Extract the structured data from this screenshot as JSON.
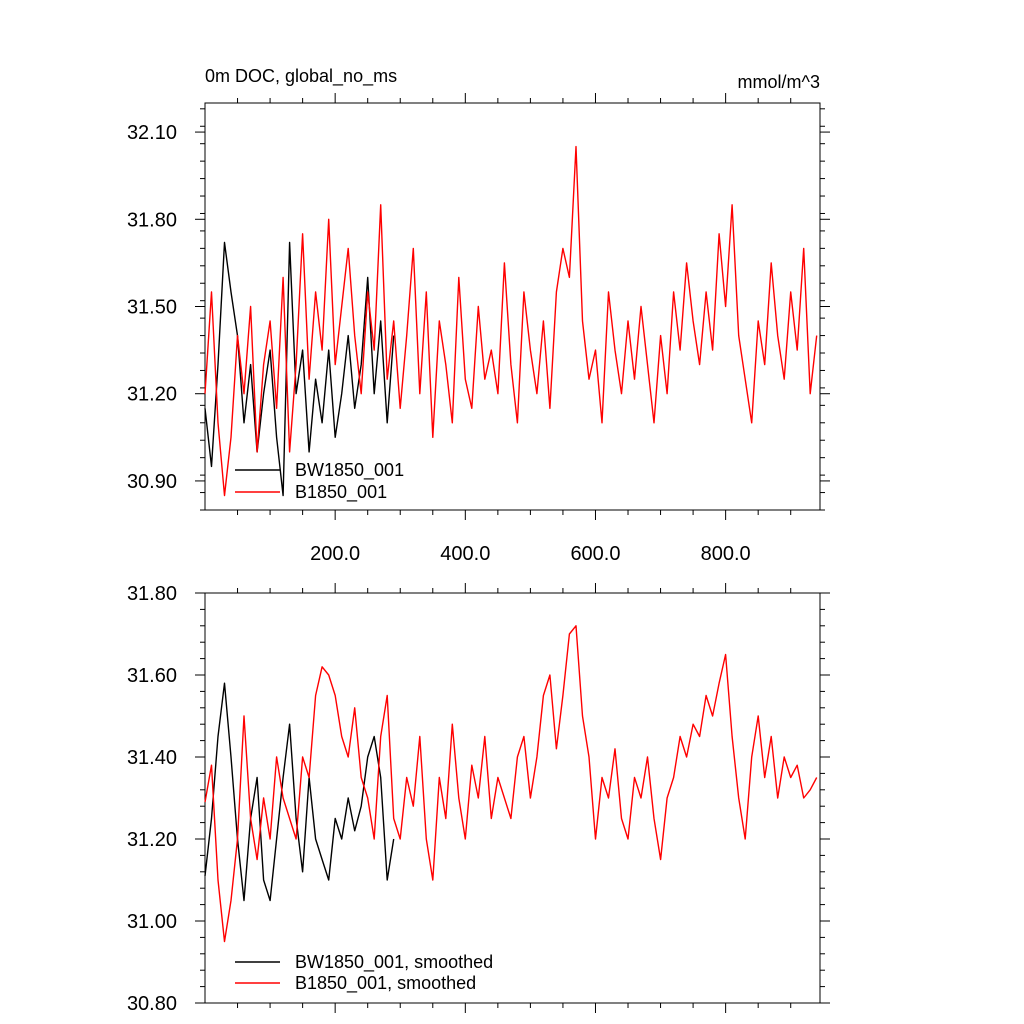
{
  "header": {
    "title": "0m DOC, global_no_ms",
    "units": "mmol/m^3"
  },
  "colors": {
    "BW1850_001": "#000000",
    "B1850_001": "#ff0000"
  },
  "chart_data": [
    {
      "type": "line",
      "panel": "top",
      "xlim": [
        0,
        945
      ],
      "ylim": [
        30.8,
        32.2
      ],
      "x_ticks": [
        200,
        400,
        600,
        800
      ],
      "x_tick_labels": [
        "200.0",
        "400.0",
        "600.0",
        "800.0"
      ],
      "y_ticks": [
        30.9,
        31.2,
        31.5,
        31.8,
        32.1
      ],
      "y_tick_labels": [
        "30.90",
        "31.20",
        "31.50",
        "31.80",
        "32.10"
      ],
      "legend_position": "bottom-left",
      "series": [
        {
          "name": "BW1850_001",
          "color": "#000000",
          "x": [
            0,
            10,
            20,
            30,
            40,
            50,
            60,
            70,
            80,
            90,
            100,
            110,
            120,
            130,
            140,
            150,
            160,
            170,
            180,
            190,
            200,
            210,
            220,
            230,
            240,
            250,
            260,
            270,
            280,
            290
          ],
          "y": [
            31.15,
            30.95,
            31.3,
            31.72,
            31.55,
            31.4,
            31.1,
            31.3,
            31.0,
            31.2,
            31.35,
            31.05,
            30.85,
            31.72,
            31.2,
            31.35,
            31.0,
            31.25,
            31.1,
            31.35,
            31.05,
            31.2,
            31.4,
            31.15,
            31.3,
            31.6,
            31.2,
            31.45,
            31.1,
            31.4
          ]
        },
        {
          "name": "B1850_001",
          "color": "#ff0000",
          "x": [
            0,
            10,
            20,
            30,
            40,
            50,
            60,
            70,
            80,
            90,
            100,
            110,
            120,
            130,
            140,
            150,
            160,
            170,
            180,
            190,
            200,
            210,
            220,
            230,
            240,
            250,
            260,
            270,
            280,
            290,
            300,
            310,
            320,
            330,
            340,
            350,
            360,
            370,
            380,
            390,
            400,
            410,
            420,
            430,
            440,
            450,
            460,
            470,
            480,
            490,
            500,
            510,
            520,
            530,
            540,
            550,
            560,
            570,
            580,
            590,
            600,
            610,
            620,
            630,
            640,
            650,
            660,
            670,
            680,
            690,
            700,
            710,
            720,
            730,
            740,
            750,
            760,
            770,
            780,
            790,
            800,
            810,
            820,
            830,
            840,
            850,
            860,
            870,
            880,
            890,
            900,
            910,
            920,
            930,
            940
          ],
          "y": [
            31.2,
            31.55,
            31.1,
            30.85,
            31.05,
            31.4,
            31.2,
            31.5,
            31.0,
            31.3,
            31.45,
            31.15,
            31.6,
            31.0,
            31.3,
            31.75,
            31.25,
            31.55,
            31.35,
            31.8,
            31.3,
            31.5,
            31.7,
            31.4,
            31.2,
            31.55,
            31.35,
            31.85,
            31.25,
            31.45,
            31.15,
            31.4,
            31.7,
            31.2,
            31.55,
            31.05,
            31.45,
            31.3,
            31.1,
            31.6,
            31.25,
            31.15,
            31.5,
            31.25,
            31.35,
            31.2,
            31.65,
            31.3,
            31.1,
            31.55,
            31.35,
            31.2,
            31.45,
            31.15,
            31.55,
            31.7,
            31.6,
            32.05,
            31.45,
            31.25,
            31.35,
            31.1,
            31.55,
            31.35,
            31.2,
            31.45,
            31.25,
            31.5,
            31.3,
            31.1,
            31.4,
            31.2,
            31.55,
            31.35,
            31.65,
            31.45,
            31.3,
            31.55,
            31.35,
            31.75,
            31.5,
            31.85,
            31.4,
            31.25,
            31.1,
            31.45,
            31.3,
            31.65,
            31.4,
            31.25,
            31.55,
            31.35,
            31.7,
            31.2,
            31.4
          ]
        }
      ]
    },
    {
      "type": "line",
      "panel": "bottom",
      "xlim": [
        0,
        945
      ],
      "ylim": [
        30.8,
        31.8
      ],
      "x_ticks": [
        200,
        400,
        600,
        800
      ],
      "y_ticks": [
        30.8,
        31.0,
        31.2,
        31.4,
        31.6,
        31.8
      ],
      "y_tick_labels": [
        "30.80",
        "31.00",
        "31.20",
        "31.40",
        "31.60",
        "31.80"
      ],
      "legend_position": "bottom-left",
      "series": [
        {
          "name": "BW1850_001, smoothed",
          "color": "#000000",
          "x": [
            0,
            10,
            20,
            30,
            40,
            50,
            60,
            70,
            80,
            90,
            100,
            110,
            120,
            130,
            140,
            150,
            160,
            170,
            180,
            190,
            200,
            210,
            220,
            230,
            240,
            250,
            260,
            270,
            280,
            290
          ],
          "y": [
            31.11,
            31.25,
            31.45,
            31.58,
            31.4,
            31.2,
            31.05,
            31.25,
            31.35,
            31.1,
            31.05,
            31.2,
            31.35,
            31.48,
            31.25,
            31.12,
            31.35,
            31.2,
            31.15,
            31.1,
            31.25,
            31.2,
            31.3,
            31.22,
            31.28,
            31.4,
            31.45,
            31.35,
            31.1,
            31.2
          ]
        },
        {
          "name": "B1850_001, smoothed",
          "color": "#ff0000",
          "x": [
            0,
            10,
            20,
            30,
            40,
            50,
            60,
            70,
            80,
            90,
            100,
            110,
            120,
            130,
            140,
            150,
            160,
            170,
            180,
            190,
            200,
            210,
            220,
            230,
            240,
            250,
            260,
            270,
            280,
            290,
            300,
            310,
            320,
            330,
            340,
            350,
            360,
            370,
            380,
            390,
            400,
            410,
            420,
            430,
            440,
            450,
            460,
            470,
            480,
            490,
            500,
            510,
            520,
            530,
            540,
            550,
            560,
            570,
            580,
            590,
            600,
            610,
            620,
            630,
            640,
            650,
            660,
            670,
            680,
            690,
            700,
            710,
            720,
            730,
            740,
            750,
            760,
            770,
            780,
            790,
            800,
            810,
            820,
            830,
            840,
            850,
            860,
            870,
            880,
            890,
            900,
            910,
            920,
            930,
            940
          ],
          "y": [
            31.29,
            31.38,
            31.1,
            30.95,
            31.05,
            31.2,
            31.5,
            31.25,
            31.15,
            31.3,
            31.2,
            31.4,
            31.3,
            31.25,
            31.2,
            31.4,
            31.35,
            31.55,
            31.62,
            31.6,
            31.55,
            31.45,
            31.4,
            31.52,
            31.35,
            31.3,
            31.2,
            31.45,
            31.55,
            31.25,
            31.2,
            31.35,
            31.28,
            31.45,
            31.2,
            31.1,
            31.35,
            31.25,
            31.48,
            31.3,
            31.2,
            31.38,
            31.3,
            31.45,
            31.25,
            31.35,
            31.3,
            31.25,
            31.4,
            31.45,
            31.3,
            31.4,
            31.55,
            31.6,
            31.42,
            31.55,
            31.7,
            31.72,
            31.5,
            31.4,
            31.2,
            31.35,
            31.3,
            31.42,
            31.25,
            31.2,
            31.35,
            31.3,
            31.4,
            31.25,
            31.15,
            31.3,
            31.35,
            31.45,
            31.4,
            31.48,
            31.45,
            31.55,
            31.5,
            31.58,
            31.65,
            31.45,
            31.3,
            31.2,
            31.4,
            31.5,
            31.35,
            31.45,
            31.3,
            31.4,
            31.35,
            31.38,
            31.3,
            31.32,
            31.35
          ]
        }
      ]
    }
  ]
}
